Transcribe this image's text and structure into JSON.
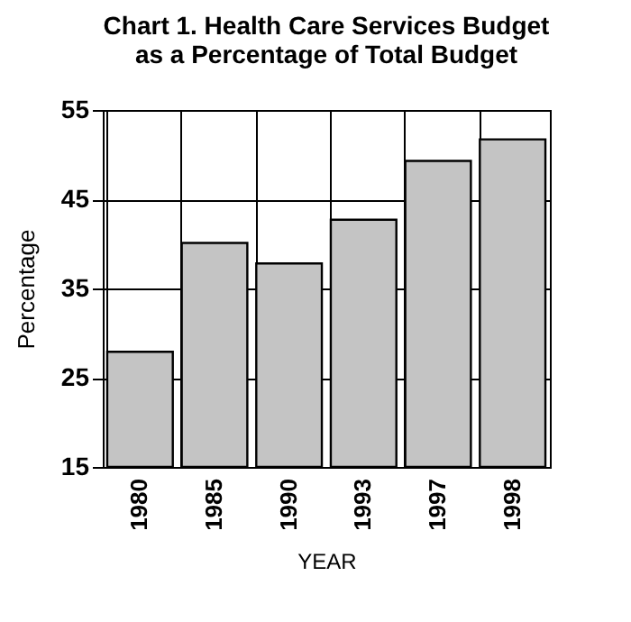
{
  "chart_data": {
    "type": "bar",
    "title": "Chart 1. Health Care Services Budget\nas a Percentage of Total Budget",
    "xlabel": "YEAR",
    "ylabel": "Percentage",
    "categories": [
      "1980",
      "1985",
      "1990",
      "1993",
      "1997",
      "1998"
    ],
    "values": [
      27.9,
      40.1,
      37.8,
      42.7,
      49.3,
      51.7
    ],
    "color": "#c4c4c4",
    "ylim": [
      15,
      55
    ],
    "yticks": [
      15,
      25,
      35,
      45,
      55
    ],
    "grid": true
  }
}
